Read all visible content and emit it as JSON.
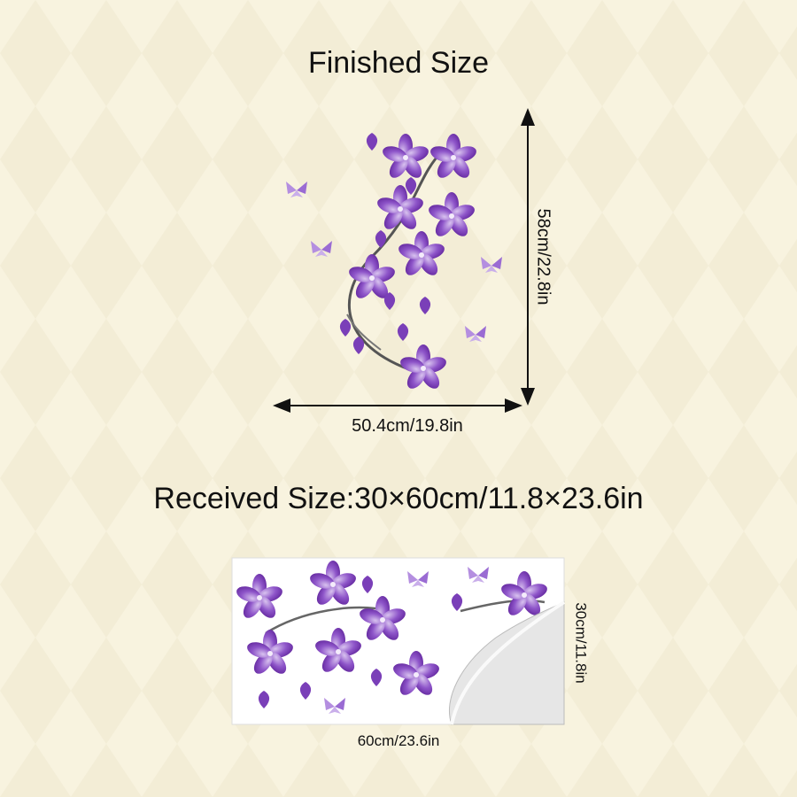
{
  "finished": {
    "title": "Finished Size",
    "height_label": "58cm/22.8in",
    "width_label": "50.4cm/19.8in"
  },
  "received": {
    "title": "Received Size:30×60cm/11.8×23.6in",
    "width_label": "60cm/23.6in",
    "height_label": "30cm/11.8in"
  }
}
